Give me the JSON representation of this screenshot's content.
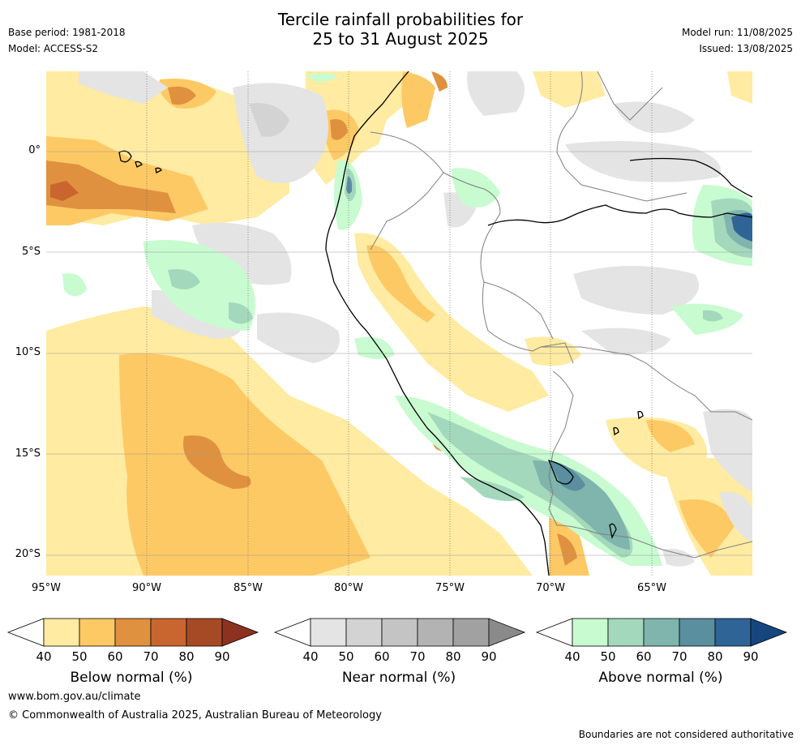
{
  "header": {
    "title_line1": "Tercile rainfall probabilities for",
    "title_line2": "25 to 31 August 2025",
    "base_period": "Base period: 1981-2018",
    "model": "Model: ACCESS-S2",
    "model_run": "Model run: 11/08/2025",
    "issued": "Issued: 13/08/2025"
  },
  "map": {
    "lat_labels": [
      "0°",
      "5°S",
      "10°S",
      "15°S",
      "20°S"
    ],
    "lon_labels": [
      "95°W",
      "90°W",
      "85°W",
      "80°W",
      "75°W",
      "70°W",
      "65°W"
    ]
  },
  "colorbars": [
    {
      "label": "Below normal (%)",
      "ticks": [
        "40",
        "50",
        "60",
        "70",
        "80",
        "90"
      ],
      "colors": [
        "#ffffff",
        "#ffeba1",
        "#fdc965",
        "#e0913f",
        "#c9652e",
        "#a64a26",
        "#8e3220"
      ]
    },
    {
      "label": "Near normal (%)",
      "ticks": [
        "40",
        "50",
        "60",
        "70",
        "80",
        "90"
      ],
      "colors": [
        "#ffffff",
        "#e4e4e4",
        "#d3d3d3",
        "#c4c4c4",
        "#b3b3b3",
        "#a1a1a1",
        "#8a8a8a"
      ]
    },
    {
      "label": "Above normal (%)",
      "ticks": [
        "40",
        "50",
        "60",
        "70",
        "80",
        "90"
      ],
      "colors": [
        "#ffffff",
        "#c8fbd0",
        "#a4d8bc",
        "#7fb5ac",
        "#5a8fa0",
        "#2e6496",
        "#17467e"
      ]
    }
  ],
  "footer": {
    "url": "www.bom.gov.au/climate",
    "copyright": "© Commonwealth of Australia 2025, Australian Bureau of Meteorology",
    "disclaimer": "Boundaries are not considered authoritative"
  }
}
